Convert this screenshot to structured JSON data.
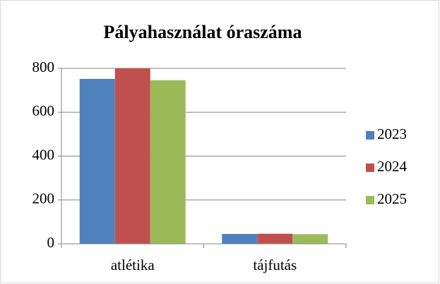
{
  "chart_data": {
    "type": "bar",
    "title": "Pályahasználat óraszáma",
    "categories": [
      "atlétika",
      "tájfutás"
    ],
    "series": [
      {
        "name": "2023",
        "color": "#4f81bd",
        "values": [
          752,
          45
        ]
      },
      {
        "name": "2024",
        "color": "#c0504d",
        "values": [
          800,
          46
        ]
      },
      {
        "name": "2025",
        "color": "#9bbb59",
        "values": [
          746,
          44
        ]
      }
    ],
    "ylim": [
      0,
      800
    ],
    "yticks": [
      0,
      200,
      400,
      600,
      800
    ],
    "grid": true,
    "legend": "right"
  }
}
